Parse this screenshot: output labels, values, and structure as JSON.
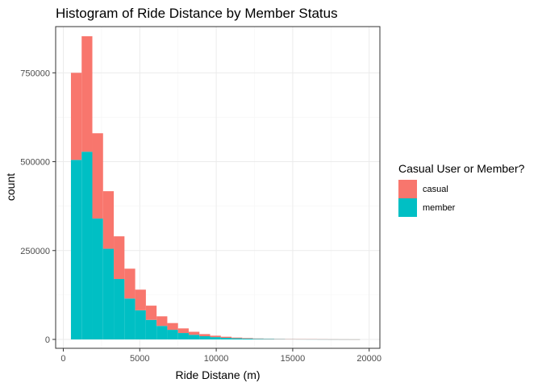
{
  "chart_data": {
    "type": "bar",
    "stacked": true,
    "title": "Histogram of Ride Distance by Member Status",
    "xlabel": "Ride Distane (m)",
    "ylabel": "count",
    "xlim": [
      -500,
      20700
    ],
    "ylim": [
      -25000,
      880000
    ],
    "xticks": [
      0,
      5000,
      10000,
      15000,
      20000
    ],
    "yticks": [
      0,
      250000,
      500000,
      750000
    ],
    "grid": true,
    "bin_width": 700,
    "x": [
      850,
      1550,
      2250,
      2950,
      3650,
      4350,
      5050,
      5750,
      6450,
      7150,
      7850,
      8550,
      9250,
      9950,
      10650,
      11350,
      12050,
      12750,
      13450,
      14150,
      14850,
      15550,
      16250,
      16950,
      17650,
      18350,
      19050
    ],
    "series": [
      {
        "name": "member",
        "color": "#00BFC4",
        "values": [
          505000,
          528000,
          340000,
          255000,
          170000,
          115000,
          82000,
          55000,
          38000,
          27000,
          18000,
          13000,
          9000,
          6500,
          4500,
          3200,
          2300,
          1700,
          1200,
          900,
          700,
          500,
          400,
          300,
          200,
          150,
          100
        ]
      },
      {
        "name": "casual",
        "color": "#F8766D",
        "values": [
          245000,
          325000,
          240000,
          162000,
          120000,
          84000,
          58000,
          40000,
          27000,
          19000,
          13000,
          8500,
          6000,
          4000,
          3000,
          2000,
          1500,
          1000,
          700,
          500,
          400,
          300,
          200,
          150,
          100,
          80,
          50
        ]
      }
    ],
    "legend": {
      "title": "Casual User or Member?",
      "placement": "right",
      "entries": [
        {
          "label": "casual",
          "color": "#F8766D"
        },
        {
          "label": "member",
          "color": "#00BFC4"
        }
      ]
    },
    "panel_border_color": "#333333",
    "grid_major_color": "#EBEBEB",
    "grid_minor_color": "#F5F5F5"
  }
}
